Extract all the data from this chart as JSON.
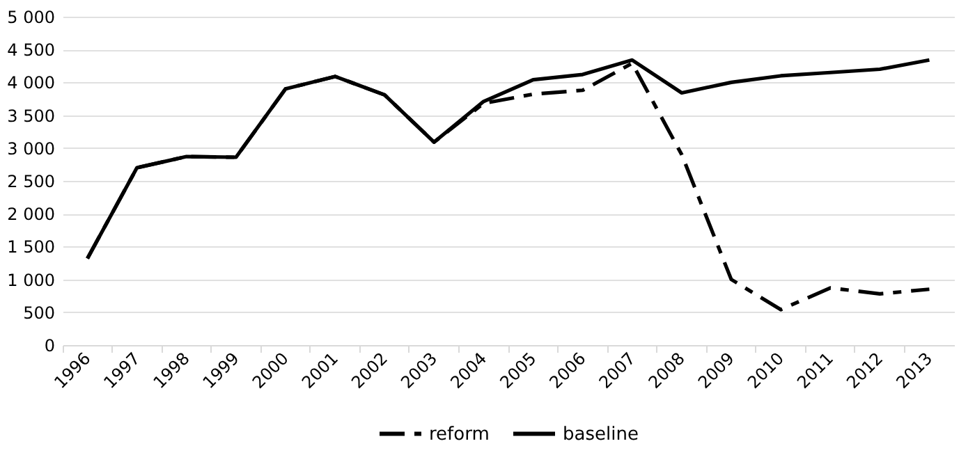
{
  "chart_data": {
    "type": "line",
    "categories": [
      "1996",
      "1997",
      "1998",
      "1999",
      "2000",
      "2001",
      "2002",
      "2003",
      "2004",
      "2005",
      "2006",
      "2007",
      "2008",
      "2009",
      "2010",
      "2011",
      "2012",
      "2013"
    ],
    "series": [
      {
        "name": "reform",
        "color": "#000000",
        "line_style": "dashed",
        "values": [
          1320,
          2700,
          2870,
          2860,
          3900,
          4090,
          3810,
          3090,
          3680,
          3820,
          3880,
          4290,
          2900,
          1000,
          540,
          870,
          780,
          850
        ]
      },
      {
        "name": "baseline",
        "color": "#000000",
        "line_style": "solid",
        "values": [
          1320,
          2700,
          2870,
          2860,
          3900,
          4090,
          3810,
          3090,
          3710,
          4040,
          4120,
          4340,
          3840,
          4000,
          4100,
          4150,
          4200,
          4340
        ]
      }
    ],
    "ylim": [
      0,
      5000
    ],
    "yticks": [
      0,
      500,
      {
        "value": 1000,
        "label": "1 000"
      },
      {
        "value": 1500,
        "label": "1 500"
      },
      {
        "value": 2000,
        "label": "2 000"
      },
      {
        "value": 2500,
        "label": "2 500"
      },
      {
        "value": 3000,
        "label": "3 000"
      },
      {
        "value": 3500,
        "label": "3 500"
      },
      {
        "value": 4000,
        "label": "4 000"
      },
      {
        "value": 4500,
        "label": "4 500"
      },
      {
        "value": 5000,
        "label": "5 000"
      }
    ],
    "grid": "y",
    "legend": "bottom"
  }
}
